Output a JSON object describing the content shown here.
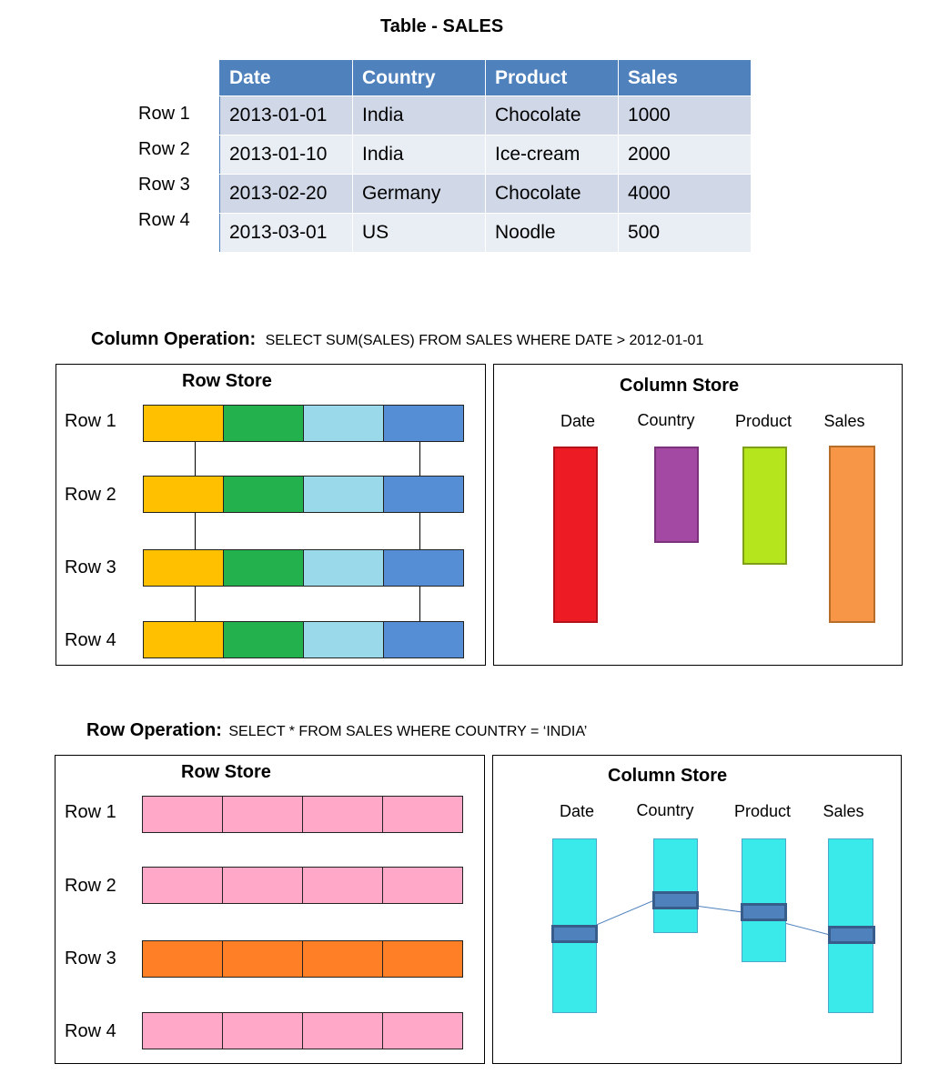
{
  "table": {
    "title": "Table - SALES",
    "row_labels": [
      "Row 1",
      "Row 2",
      "Row 3",
      "Row 4"
    ],
    "headers": [
      "Date",
      "Country",
      "Product",
      "Sales"
    ],
    "rows": [
      [
        "2013-01-01",
        "India",
        "Chocolate",
        "1000"
      ],
      [
        "2013-01-10",
        "India",
        "Ice-cream",
        "2000"
      ],
      [
        "2013-02-20",
        "Germany",
        "Chocolate",
        "4000"
      ],
      [
        "2013-03-01",
        "US",
        "Noodle",
        "500"
      ]
    ],
    "header_color": "#4f81bd",
    "row_colors": [
      "#d0d8e8",
      "#e9edf4"
    ]
  },
  "column_operation": {
    "label": "Column Operation:",
    "query": "SELECT SUM(SALES) FROM SALES WHERE DATE > 2012-01-01",
    "row_store": {
      "title": "Row Store",
      "row_labels": [
        "Row 1",
        "Row 2",
        "Row 3",
        "Row 4"
      ],
      "cell_colors": [
        "#ffc000",
        "#22b14c",
        "#99d9ea",
        "#558ed5"
      ]
    },
    "column_store": {
      "title": "Column Store",
      "columns": [
        {
          "name": "Date",
          "color": "#ed1c24",
          "border": "#b5111a"
        },
        {
          "name": "Country",
          "color": "#a349a4",
          "border": "#7a337b"
        },
        {
          "name": "Product",
          "color": "#b5e61d",
          "border": "#7f9f1a"
        },
        {
          "name": "Sales",
          "color": "#f79646",
          "border": "#b66d2a"
        }
      ]
    }
  },
  "row_operation": {
    "label": "Row Operation:",
    "query": "SELECT * FROM SALES WHERE COUNTRY = ‘INDIA’",
    "row_store": {
      "title": "Row Store",
      "row_labels": [
        "Row 1",
        "Row 2",
        "Row 3",
        "Row 4"
      ],
      "row_colors": [
        "#ffa8c8",
        "#ffa8c8",
        "#ff7f27",
        "#ffa8c8"
      ]
    },
    "column_store": {
      "title": "Column Store",
      "columns": [
        {
          "name": "Date"
        },
        {
          "name": "Country"
        },
        {
          "name": "Product"
        },
        {
          "name": "Sales"
        }
      ],
      "column_color": "#3ae9e9",
      "highlight_color": "#4f81bd"
    }
  }
}
